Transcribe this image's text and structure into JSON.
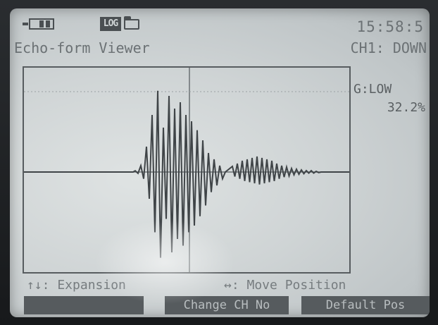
{
  "status_bar": {
    "battery_icon": "battery-icon",
    "log_icon": "log-folder-icon",
    "log_label": "LOG",
    "clock": "15:58:5"
  },
  "header": {
    "title": "Echo-form Viewer",
    "channel": "CH1: DOWN"
  },
  "side_panel": {
    "gain_label": "G:LOW",
    "gain_value": "32.2%"
  },
  "hints": {
    "left": "↑↓: Expansion",
    "right": "↔: Move Position"
  },
  "softkeys": [
    {
      "label": ""
    },
    {
      "label": "Change CH No"
    },
    {
      "label": "Default Pos"
    }
  ],
  "waveform": {
    "burst1": [
      2,
      10,
      40,
      90,
      128,
      70,
      120,
      100,
      110,
      90,
      80,
      66,
      50,
      30,
      20,
      10
    ],
    "burst2": [
      8,
      12,
      16,
      18,
      20,
      22,
      20,
      18,
      16,
      12,
      9,
      7,
      5,
      4,
      3,
      2,
      2,
      1
    ],
    "colors": {
      "trace": "#3f4447",
      "grid": "#6a7073"
    }
  }
}
